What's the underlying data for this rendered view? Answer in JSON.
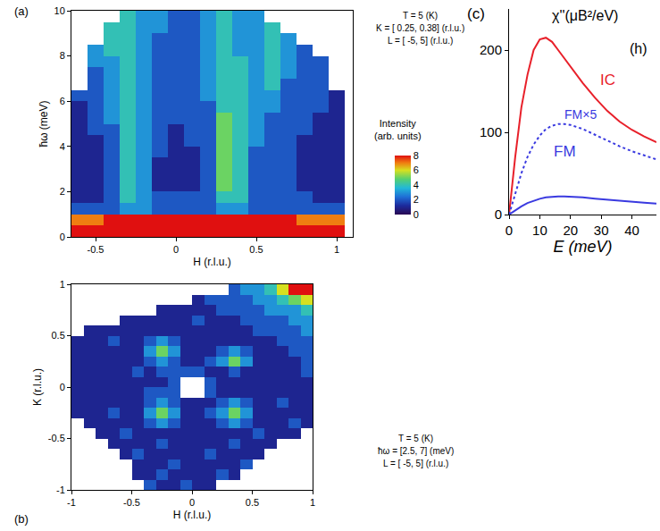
{
  "chart_data": [
    {
      "type": "heatmap",
      "panel_label": "(a)",
      "x_label": "H (r.l.u.)",
      "y_label": "ħω (meV)",
      "annotations": [
        "T = 5 (K)",
        "K = [ 0.25, 0.38] (r.l.u.)",
        "L = [ -5, 5] (r.l.u.)"
      ],
      "x": [
        -0.6,
        -0.5,
        -0.4,
        -0.3,
        -0.2,
        -0.1,
        0,
        0.1,
        0.2,
        0.3,
        0.4,
        0.5,
        0.6,
        0.7,
        0.8,
        0.9,
        1.0
      ],
      "y": [
        0.25,
        0.75,
        1.25,
        1.75,
        2.25,
        2.75,
        3.25,
        3.75,
        4.25,
        4.75,
        5.25,
        5.75,
        6.25,
        6.75,
        7.25,
        7.75,
        8.25,
        8.75,
        9.25,
        9.75
      ],
      "z": [
        [
          8,
          8,
          8,
          8,
          8,
          8,
          8,
          8,
          8,
          8,
          8,
          8,
          8,
          8,
          8,
          8,
          8
        ],
        [
          7,
          7,
          8,
          8,
          8,
          8,
          8,
          8,
          8,
          8,
          8,
          8,
          8,
          8,
          7,
          7,
          7
        ],
        [
          2,
          2,
          2,
          3,
          3,
          2,
          2,
          2,
          2,
          3,
          3,
          2,
          2,
          2,
          2,
          2,
          2
        ],
        [
          1,
          1,
          2,
          4,
          3,
          2,
          2,
          2,
          2,
          4,
          4,
          2,
          2,
          2,
          2,
          1,
          1
        ],
        [
          1,
          1,
          2,
          4,
          3,
          1,
          1,
          1,
          2,
          5,
          4,
          2,
          2,
          2,
          1,
          1,
          1
        ],
        [
          1,
          1,
          2,
          4,
          3,
          1,
          1,
          1,
          2,
          5,
          4,
          2,
          2,
          2,
          1,
          1,
          1
        ],
        [
          1,
          1,
          2,
          4,
          3,
          1,
          1,
          1,
          2,
          5,
          4,
          2,
          2,
          2,
          1,
          1,
          1
        ],
        [
          1,
          1,
          2,
          4,
          3,
          2,
          1,
          1,
          2,
          5,
          4,
          2,
          2,
          2,
          1,
          1,
          1
        ],
        [
          1,
          1,
          2,
          4,
          3,
          2,
          1,
          2,
          2,
          5,
          4,
          3,
          2,
          2,
          1,
          1,
          1
        ],
        [
          1,
          2,
          2,
          4,
          3,
          2,
          1,
          2,
          2,
          5,
          4,
          3,
          2,
          2,
          2,
          1,
          1
        ],
        [
          1,
          2,
          3,
          4,
          3,
          2,
          2,
          2,
          2,
          5,
          4,
          3,
          2,
          2,
          2,
          1,
          1
        ],
        [
          1,
          2,
          3,
          4,
          3,
          2,
          2,
          2,
          2,
          4,
          4,
          3,
          3,
          2,
          2,
          2,
          1
        ],
        [
          2,
          2,
          3,
          4,
          3,
          2,
          2,
          2,
          3,
          4,
          4,
          3,
          3,
          2,
          2,
          2,
          1
        ],
        [
          null,
          2,
          3,
          4,
          3,
          2,
          2,
          2,
          3,
          4,
          4,
          3,
          4,
          2,
          2,
          2,
          null
        ],
        [
          null,
          2,
          3,
          4,
          3,
          2,
          2,
          2,
          3,
          4,
          4,
          3,
          4,
          3,
          2,
          2,
          null
        ],
        [
          null,
          3,
          3,
          4,
          3,
          2,
          2,
          2,
          3,
          4,
          4,
          3,
          4,
          3,
          2,
          2,
          null
        ],
        [
          null,
          3,
          4,
          4,
          3,
          2,
          2,
          2,
          3,
          4,
          3,
          3,
          4,
          3,
          2,
          null,
          null
        ],
        [
          null,
          null,
          4,
          4,
          3,
          2,
          2,
          2,
          3,
          4,
          3,
          3,
          4,
          3,
          null,
          null,
          null
        ],
        [
          null,
          null,
          4,
          4,
          3,
          3,
          2,
          2,
          3,
          4,
          3,
          3,
          4,
          null,
          null,
          null,
          null
        ],
        [
          null,
          null,
          null,
          4,
          3,
          3,
          2,
          2,
          3,
          4,
          3,
          3,
          null,
          null,
          null,
          null,
          null
        ]
      ],
      "xlim": [
        -0.65,
        1.1
      ],
      "xticks": [
        -0.5,
        0,
        0.5,
        1
      ],
      "ylim": [
        0,
        10
      ],
      "yticks": [
        0,
        2,
        4,
        6,
        8,
        10
      ],
      "colorbar": {
        "title": "Intensity (arb. units)",
        "range": [
          0,
          8
        ],
        "ticks": [
          0,
          2,
          4,
          6,
          8
        ]
      }
    },
    {
      "type": "heatmap",
      "panel_label": "(b)",
      "x_label": "H (r.l.u.)",
      "y_label": "K (r.l.u.)",
      "annotations": [
        "T = 5 (K)",
        "ħω = [2.5, 7] (meV)",
        "L = [ -5, 5] (r.l.u.)"
      ],
      "x": [
        -0.95,
        -0.85,
        -0.75,
        -0.65,
        -0.55,
        -0.45,
        -0.35,
        -0.25,
        -0.15,
        -0.05,
        0.05,
        0.15,
        0.25,
        0.35,
        0.45,
        0.55,
        0.65,
        0.75,
        0.85,
        0.95
      ],
      "y": [
        -0.95,
        -0.85,
        -0.75,
        -0.65,
        -0.55,
        -0.45,
        -0.35,
        -0.25,
        -0.15,
        -0.05,
        0.05,
        0.15,
        0.25,
        0.35,
        0.45,
        0.55,
        0.65,
        0.75,
        0.85,
        0.95
      ],
      "z": [
        [
          null,
          null,
          null,
          null,
          null,
          null,
          2,
          1,
          1,
          2,
          1,
          1,
          null,
          null,
          null,
          null,
          null,
          null,
          null,
          null
        ],
        [
          null,
          null,
          null,
          null,
          null,
          1,
          1,
          2,
          1,
          1,
          1,
          1,
          2,
          1,
          null,
          null,
          null,
          null,
          null,
          null
        ],
        [
          null,
          null,
          null,
          null,
          null,
          1,
          1,
          1,
          2,
          1,
          1,
          1,
          1,
          1,
          2,
          null,
          null,
          null,
          null,
          null
        ],
        [
          null,
          null,
          null,
          null,
          1,
          2,
          1,
          1,
          1,
          1,
          1,
          2,
          1,
          1,
          1,
          1,
          null,
          null,
          null,
          null
        ],
        [
          null,
          null,
          null,
          1,
          1,
          1,
          1,
          2,
          1,
          1,
          1,
          1,
          1,
          2,
          1,
          1,
          1,
          null,
          null,
          null
        ],
        [
          null,
          null,
          1,
          1,
          2,
          1,
          1,
          1,
          1,
          1,
          1,
          1,
          1,
          1,
          1,
          2,
          1,
          1,
          1,
          null
        ],
        [
          null,
          1,
          1,
          1,
          1,
          1,
          2,
          3,
          2,
          1,
          1,
          1,
          2,
          3,
          2,
          1,
          1,
          1,
          2,
          1
        ],
        [
          1,
          1,
          1,
          2,
          1,
          1,
          3,
          5,
          3,
          1,
          1,
          2,
          3,
          5,
          3,
          1,
          1,
          1,
          1,
          1
        ],
        [
          1,
          1,
          1,
          1,
          1,
          1,
          2,
          3,
          2,
          1,
          1,
          1,
          2,
          3,
          2,
          1,
          1,
          2,
          1,
          1
        ],
        [
          1,
          1,
          1,
          1,
          1,
          1,
          2,
          2,
          2,
          null,
          null,
          2,
          1,
          1,
          1,
          1,
          1,
          1,
          1,
          1
        ],
        [
          1,
          1,
          1,
          1,
          1,
          1,
          1,
          1,
          2,
          null,
          null,
          2,
          1,
          1,
          1,
          1,
          1,
          1,
          1,
          1
        ],
        [
          1,
          1,
          1,
          1,
          1,
          2,
          1,
          2,
          2,
          2,
          2,
          1,
          1,
          2,
          1,
          1,
          1,
          1,
          1,
          2
        ],
        [
          1,
          1,
          1,
          1,
          1,
          1,
          2,
          3,
          2,
          1,
          1,
          2,
          3,
          5,
          3,
          1,
          1,
          1,
          1,
          2
        ],
        [
          1,
          1,
          1,
          1,
          1,
          1,
          3,
          5,
          3,
          1,
          1,
          1,
          2,
          3,
          2,
          1,
          1,
          1,
          2,
          2
        ],
        [
          1,
          1,
          1,
          2,
          1,
          1,
          2,
          3,
          2,
          1,
          1,
          1,
          1,
          1,
          1,
          1,
          1,
          2,
          2,
          2
        ],
        [
          null,
          1,
          1,
          1,
          1,
          1,
          1,
          1,
          1,
          1,
          1,
          1,
          1,
          1,
          1,
          2,
          2,
          2,
          2,
          3
        ],
        [
          null,
          null,
          null,
          null,
          1,
          1,
          1,
          1,
          1,
          1,
          2,
          1,
          1,
          1,
          2,
          2,
          2,
          2,
          3,
          3
        ],
        [
          null,
          null,
          null,
          null,
          null,
          null,
          null,
          1,
          1,
          1,
          1,
          1,
          2,
          2,
          2,
          2,
          3,
          3,
          3,
          4
        ],
        [
          null,
          null,
          null,
          null,
          null,
          null,
          null,
          null,
          null,
          null,
          1,
          2,
          2,
          2,
          2,
          3,
          3,
          4,
          5,
          6
        ],
        [
          null,
          null,
          null,
          null,
          null,
          null,
          null,
          null,
          null,
          null,
          null,
          null,
          null,
          2,
          3,
          3,
          4,
          6,
          8,
          8
        ]
      ],
      "xlim": [
        -1,
        1
      ],
      "xticks": [
        -1,
        -0.5,
        0,
        0.5,
        1
      ],
      "ylim": [
        -1,
        1
      ],
      "yticks": [
        -1,
        -0.5,
        0,
        0.5,
        1
      ]
    },
    {
      "type": "line",
      "panel_label": "(c)",
      "y_label": "χ''(μB²/eV)",
      "x_label": "E (meV)",
      "annotations": [
        "(h)"
      ],
      "x": [
        0,
        2,
        4,
        6,
        8,
        10,
        12,
        14,
        16,
        18,
        20,
        24,
        28,
        32,
        36,
        40,
        44,
        48
      ],
      "series": [
        {
          "name": "IC",
          "color": "#e8202a",
          "line_style": "solid",
          "values": [
            0,
            70,
            130,
            170,
            200,
            213,
            215,
            210,
            200,
            190,
            180,
            160,
            142,
            126,
            113,
            103,
            95,
            88
          ]
        },
        {
          "name": "FM×5",
          "color": "#3a3ae0",
          "line_style": "dotted",
          "values": [
            0,
            25,
            50,
            70,
            85,
            96,
            104,
            108,
            110,
            110,
            109,
            104,
            97,
            90,
            83,
            77,
            72,
            67
          ]
        },
        {
          "name": "FM",
          "color": "#3a3ae0",
          "line_style": "solid",
          "values": [
            0,
            5,
            10,
            14,
            17,
            19.2,
            20.8,
            21.6,
            22,
            22,
            21.8,
            20.8,
            19.4,
            18,
            16.6,
            15.4,
            14.4,
            13.4
          ]
        }
      ],
      "xlim": [
        0,
        48
      ],
      "xticks": [
        0,
        10,
        20,
        30,
        40
      ],
      "ylim": [
        0,
        250
      ],
      "yticks": [
        0,
        100,
        200
      ]
    }
  ]
}
